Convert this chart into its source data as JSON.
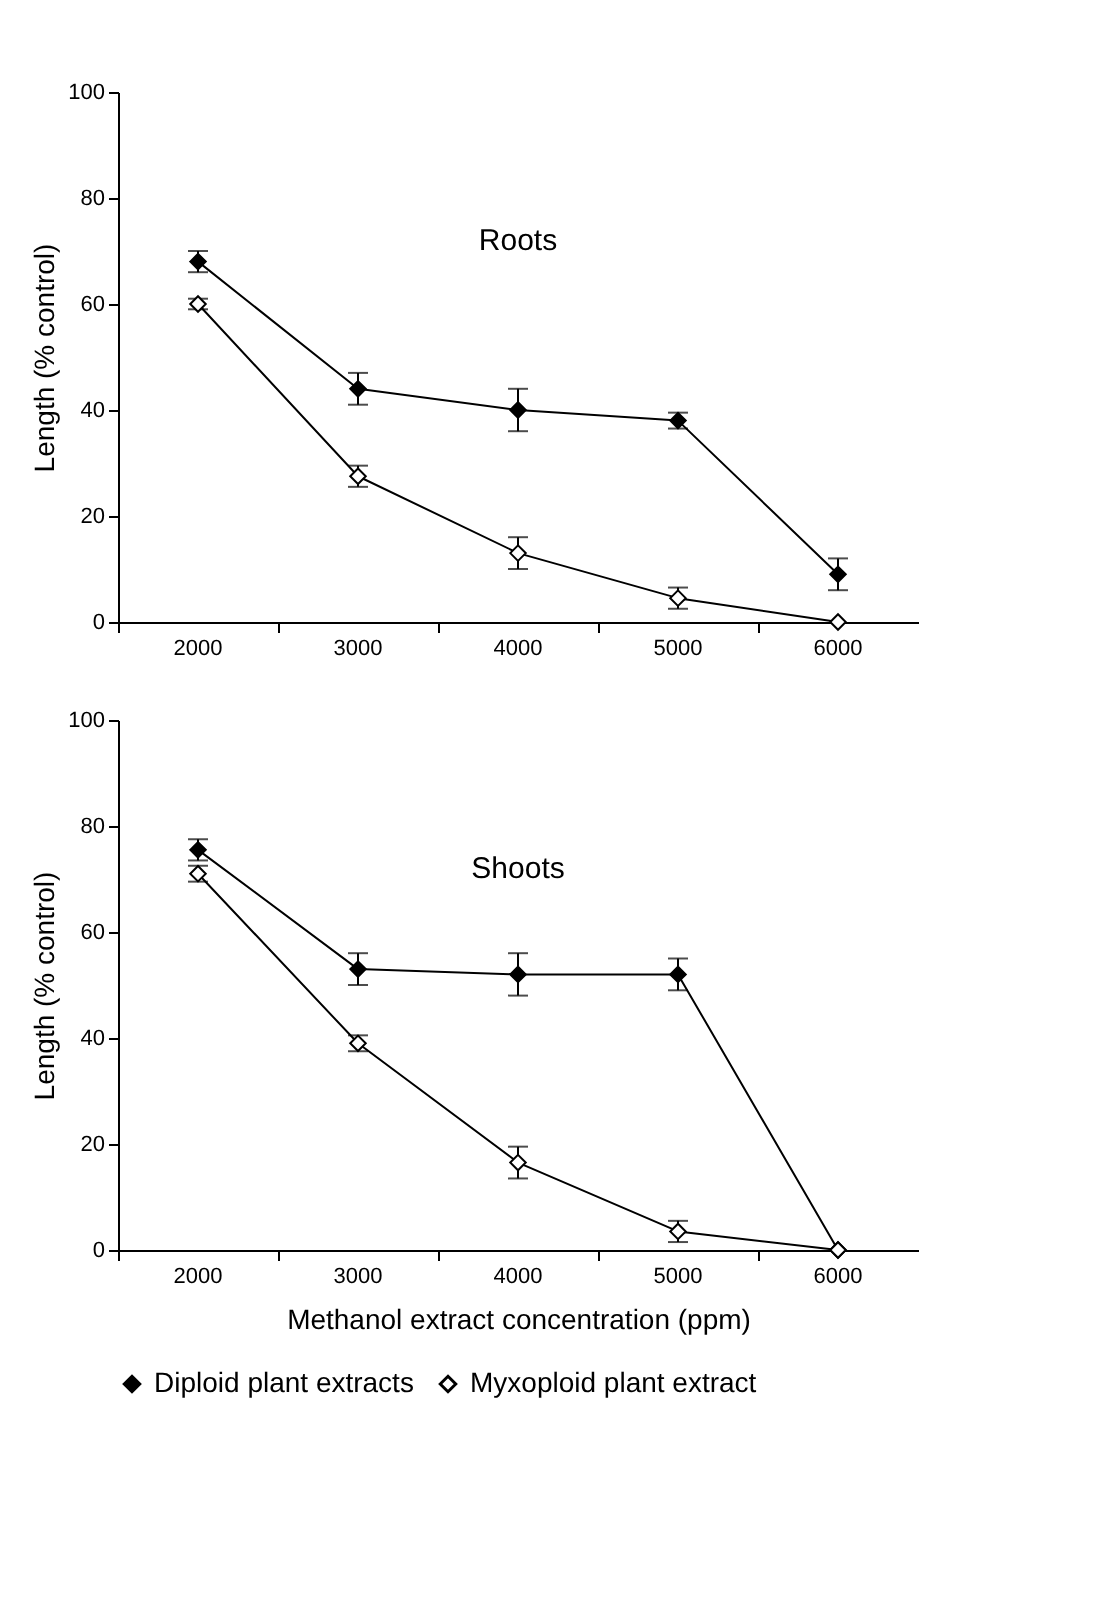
{
  "chart_data": [
    {
      "type": "line",
      "ylabel": "Length (% control)",
      "annotations": [
        "Roots"
      ],
      "categories": [
        "2000",
        "3000",
        "4000",
        "5000",
        "6000"
      ],
      "ylim": [
        0,
        100
      ],
      "yticks": [
        0,
        20,
        40,
        60,
        80,
        100
      ],
      "marker": "diamond",
      "grid": false,
      "legend": "bottom",
      "series": [
        {
          "name": "Diploid plant extracts",
          "color": "#000000",
          "values": [
            68,
            44,
            40,
            38,
            9
          ],
          "errors": [
            2,
            3,
            4,
            1.5,
            3
          ]
        },
        {
          "name": "Myxoploid plant extract",
          "color": "#ffffff",
          "values": [
            60,
            27.5,
            13,
            4.5,
            0
          ],
          "errors": [
            1,
            2,
            3,
            2,
            null
          ]
        }
      ]
    },
    {
      "type": "line",
      "ylabel": "Length (% control)",
      "xlabel": "Methanol extract concentration (ppm)",
      "annotations": [
        "Shoots"
      ],
      "categories": [
        "2000",
        "3000",
        "4000",
        "5000",
        "6000"
      ],
      "ylim": [
        0,
        100
      ],
      "yticks": [
        0,
        20,
        40,
        60,
        80,
        100
      ],
      "marker": "diamond",
      "grid": false,
      "series": [
        {
          "color": "#000000",
          "values": [
            75.5,
            53,
            52,
            52,
            0
          ],
          "errors": [
            2,
            3,
            4,
            3,
            null
          ]
        },
        {
          "color": "#ffffff",
          "values": [
            71,
            39,
            16.5,
            3.5,
            0
          ],
          "errors": [
            1.5,
            1.5,
            3,
            2,
            null
          ]
        }
      ]
    }
  ]
}
